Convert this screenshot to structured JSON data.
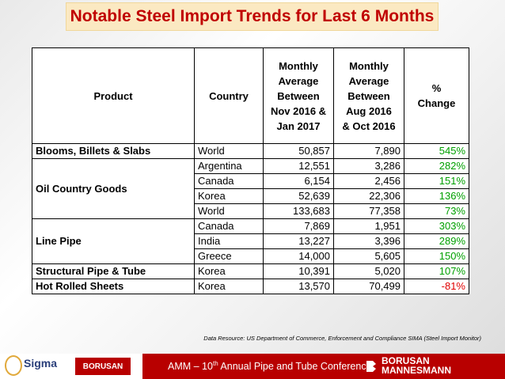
{
  "title": "Notable Steel Import Trends for Last 6 Months",
  "table": {
    "headers": {
      "product": "Product",
      "country": "Country",
      "col1": [
        "Monthly",
        "Average",
        "Between",
        "Nov 2016 &",
        "Jan 2017"
      ],
      "col2": [
        "Monthly",
        "Average",
        "Between",
        "Aug 2016",
        "& Oct 2016"
      ],
      "col3": [
        "%",
        "Change"
      ]
    },
    "groups": [
      {
        "product": "Blooms, Billets & Slabs",
        "rows": [
          {
            "country": "World",
            "v1": "50,857",
            "v2": "7,890",
            "pct": "545%"
          }
        ]
      },
      {
        "product": "Oil Country Goods",
        "rows": [
          {
            "country": "Argentina",
            "v1": "12,551",
            "v2": "3,286",
            "pct": "282%"
          },
          {
            "country": "Canada",
            "v1": "6,154",
            "v2": "2,456",
            "pct": "151%"
          },
          {
            "country": "Korea",
            "v1": "52,639",
            "v2": "22,306",
            "pct": "136%"
          },
          {
            "country": "World",
            "v1": "133,683",
            "v2": "77,358",
            "pct": "73%"
          }
        ]
      },
      {
        "product": "Line Pipe",
        "rows": [
          {
            "country": "Canada",
            "v1": "7,869",
            "v2": "1,951",
            "pct": "303%"
          },
          {
            "country": "India",
            "v1": "13,227",
            "v2": "3,396",
            "pct": "289%"
          },
          {
            "country": "Greece",
            "v1": "14,000",
            "v2": "5,605",
            "pct": "150%"
          }
        ]
      },
      {
        "product": "Structural Pipe & Tube",
        "rows": [
          {
            "country": "Korea",
            "v1": "10,391",
            "v2": "5,020",
            "pct": "107%"
          }
        ]
      },
      {
        "product": "Hot Rolled Sheets",
        "rows": [
          {
            "country": "Korea",
            "v1": "13,570",
            "v2": "70,499",
            "pct": "-81%"
          }
        ]
      }
    ]
  },
  "source": "Data Resource: US Department of Commerce, Enforcement and Compliance SIMA (Steel Import Monitor)",
  "footer": {
    "sigma_logo": "Sigma",
    "borusan_small": "BORUSAN",
    "conference_prefix": "AMM – 10",
    "conference_sup": "th",
    "conference_suffix": " Annual Pipe and Tube Conference",
    "borusan_line1": "BORUSAN",
    "borusan_line2": "MANNESMANN"
  },
  "colors": {
    "title": "#c00000",
    "positive": "#00a000",
    "negative": "#e00000",
    "footer": "#b80000"
  }
}
